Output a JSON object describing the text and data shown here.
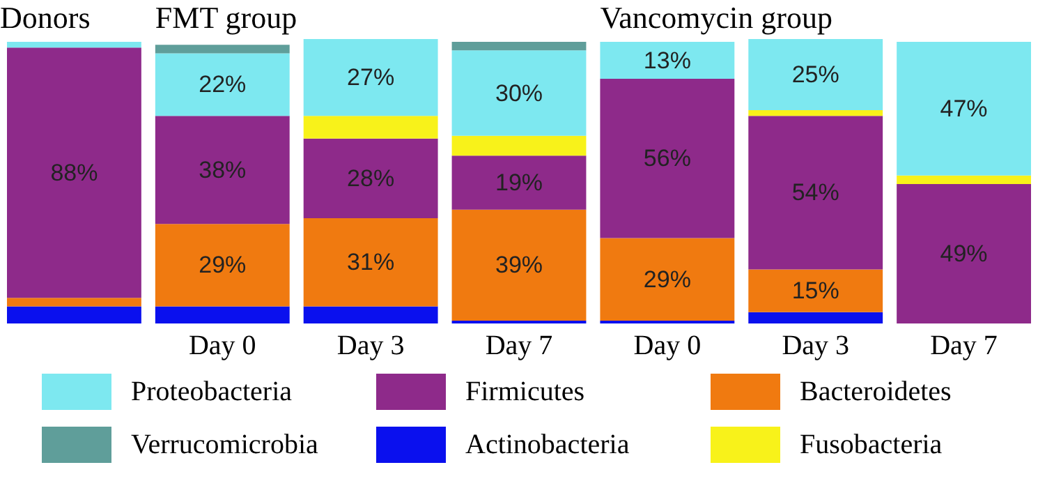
{
  "chart_data": {
    "type": "bar",
    "stacked": true,
    "categories": [
      null,
      "Day 0",
      "Day 3",
      "Day 7",
      "Day 0",
      "Day 3",
      "Day 7"
    ],
    "ylim": [
      0,
      100
    ],
    "legend": "bottom",
    "annotations": [
      "Donors",
      "FMT group",
      "Vancomycin group"
    ],
    "series": [
      {
        "name": "Actinobacteria",
        "color": "#0a10ee",
        "values": [
          6,
          6,
          6,
          1,
          1,
          4,
          0
        ],
        "value_labels": [
          null,
          null,
          null,
          null,
          null,
          null,
          null
        ]
      },
      {
        "name": "Bacteroidetes",
        "color": "#f07a10",
        "values": [
          3,
          29,
          31,
          39,
          29,
          15,
          0
        ],
        "value_labels": [
          null,
          "29%",
          "31%",
          "39%",
          "29%",
          "15%",
          null
        ]
      },
      {
        "name": "Firmicutes",
        "color": "#8e2a8a",
        "values": [
          88,
          38,
          28,
          19,
          56,
          54,
          49
        ],
        "value_labels": [
          "88%",
          "38%",
          "28%",
          "19%",
          "56%",
          "54%",
          "49%"
        ]
      },
      {
        "name": "Fusobacteria",
        "color": "#f8f21a",
        "values": [
          0,
          0,
          8,
          7,
          0,
          2,
          3
        ],
        "value_labels": [
          null,
          null,
          null,
          null,
          null,
          null,
          null
        ]
      },
      {
        "name": "Proteobacteria",
        "color": "#7de8f0",
        "values": [
          2,
          22,
          27,
          30,
          13,
          25,
          47
        ],
        "value_labels": [
          null,
          "22%",
          "27%",
          "30%",
          "13%",
          "25%",
          "47%"
        ]
      },
      {
        "name": "Verrucomicrobia",
        "color": "#5f9e9a",
        "values": [
          0,
          3,
          0,
          3,
          0,
          0,
          0
        ],
        "value_labels": [
          null,
          null,
          null,
          null,
          null,
          null,
          null
        ]
      }
    ]
  }
}
